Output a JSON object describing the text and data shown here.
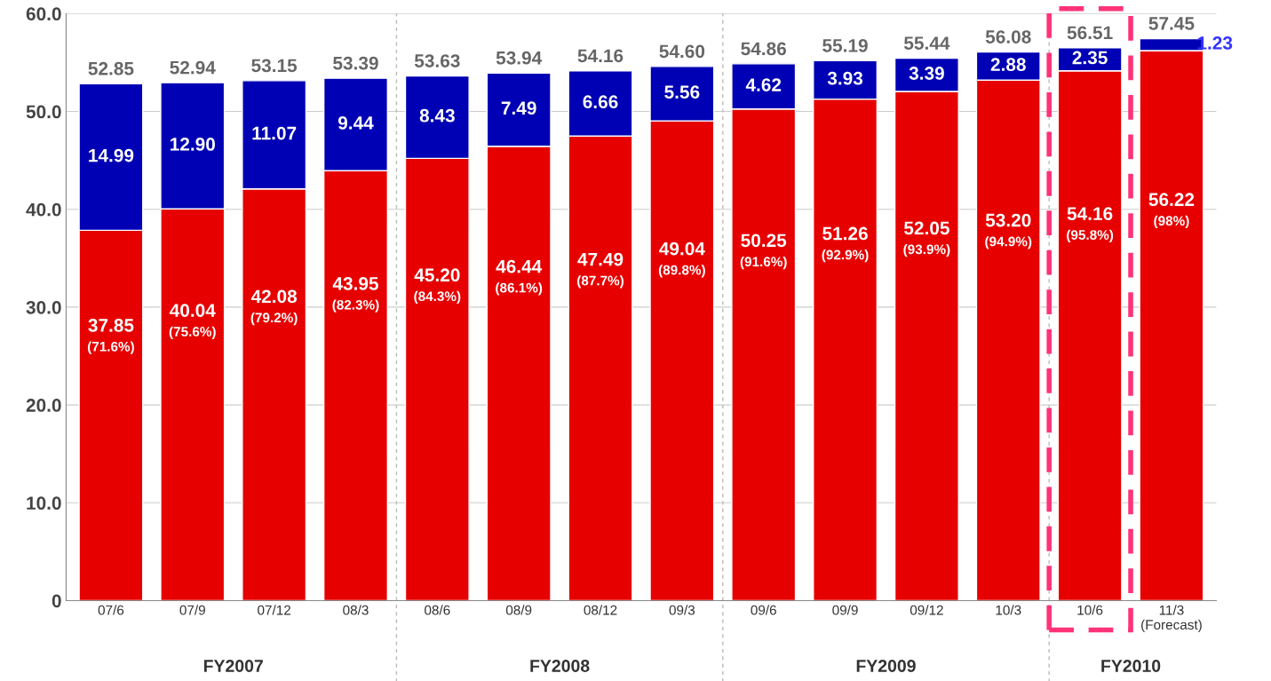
{
  "chart_data": {
    "type": "bar",
    "stacked": true,
    "categories": [
      "07/6",
      "07/9",
      "07/12",
      "08/3",
      "08/6",
      "08/9",
      "08/12",
      "09/3",
      "09/6",
      "09/9",
      "09/12",
      "10/3",
      "10/6",
      "11/3\n(Forecast)"
    ],
    "series": [
      {
        "color": "#e60000",
        "values": [
          37.85,
          40.04,
          42.08,
          43.95,
          45.2,
          46.44,
          47.49,
          49.04,
          50.25,
          51.26,
          52.05,
          53.2,
          54.16,
          56.22
        ],
        "value_labels": [
          "37.85\n(71.6%)",
          "40.04\n(75.6%)",
          "42.08\n(79.2%)",
          "43.95\n(82.3%)",
          "45.20\n(84.3%)",
          "46.44\n(86.1%)",
          "47.49\n(87.7%)",
          "49.04\n(89.8%)",
          "50.25\n(91.6%)",
          "51.26\n(92.9%)",
          "52.05\n(93.9%)",
          "53.20\n(94.9%)",
          "54.16\n(95.8%)",
          "56.22\n(98%)"
        ]
      },
      {
        "color": "#0000b4",
        "values": [
          14.99,
          12.9,
          11.07,
          9.44,
          8.43,
          7.49,
          6.66,
          5.56,
          4.62,
          3.93,
          3.39,
          2.88,
          2.35,
          1.23
        ],
        "value_labels": [
          "14.99",
          "12.90",
          "11.07",
          "9.44",
          "8.43",
          "7.49",
          "6.66",
          "5.56",
          "4.62",
          "3.93",
          "3.39",
          "2.88",
          "2.35",
          "1.23"
        ]
      }
    ],
    "totals": [
      "52.85",
      "52.94",
      "53.15",
      "53.39",
      "53.63",
      "53.94",
      "54.16",
      "54.60",
      "54.86",
      "55.19",
      "55.44",
      "56.08",
      "56.51",
      "57.45"
    ],
    "ylim": [
      0,
      60
    ],
    "yticks": [
      0,
      {
        "value": 10,
        "label": "10.0"
      },
      {
        "value": 20,
        "label": "20.0"
      },
      {
        "value": 30,
        "label": "30.0"
      },
      {
        "value": 40,
        "label": "40.0"
      },
      {
        "value": 50,
        "label": "50.0"
      },
      {
        "value": 60,
        "label": "60.0"
      }
    ],
    "grid": "y",
    "annotations": [
      "FY2007",
      "FY2008",
      "FY2009",
      "FY2010"
    ]
  }
}
